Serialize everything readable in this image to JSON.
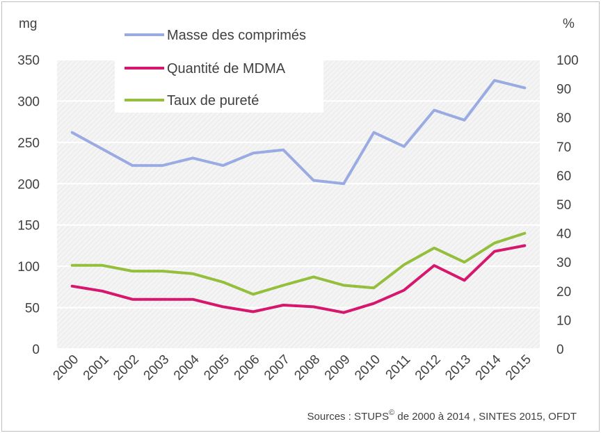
{
  "chart_data": {
    "type": "line",
    "x": [
      "2000",
      "2001",
      "2002",
      "2003",
      "2004",
      "2005",
      "2006",
      "2007",
      "2008",
      "2009",
      "2010",
      "2011",
      "2012",
      "2013",
      "2014",
      "2015"
    ],
    "y_left_label": "mg",
    "y_right_label": "%",
    "y_left_ticks": [
      "0",
      "50",
      "100",
      "150",
      "200",
      "250",
      "300",
      "350"
    ],
    "y_right_ticks": [
      "0",
      "10",
      "20",
      "30",
      "40",
      "50",
      "60",
      "70",
      "80",
      "90",
      "100"
    ],
    "ylim_left": [
      0,
      350
    ],
    "ylim_right": [
      0,
      100
    ],
    "series": [
      {
        "name": "Masse des comprimés",
        "axis": "left",
        "color": "#9aaae3",
        "values": [
          262,
          242,
          222,
          222,
          231,
          222,
          237,
          241,
          204,
          200,
          262,
          245,
          289,
          277,
          325,
          316
        ]
      },
      {
        "name": "Quantité de MDMA",
        "axis": "left",
        "color": "#d6176d",
        "values": [
          76,
          70,
          60,
          60,
          60,
          51,
          45,
          53,
          51,
          44,
          55,
          71,
          101,
          83,
          118,
          125
        ]
      },
      {
        "name": "Taux de pureté",
        "axis": "right",
        "color": "#94bf3c",
        "values": [
          28.9,
          28.9,
          26.9,
          26.9,
          26.0,
          23.1,
          18.9,
          22.0,
          24.9,
          22.0,
          21.1,
          29.1,
          34.9,
          30.0,
          36.6,
          40.0
        ]
      }
    ],
    "legend": "top-left, inside plot",
    "grid": true,
    "source": {
      "prefix": "Sources : STUPS",
      "superscript": "©",
      "suffix": " de 2000 à 2014 , SINTES 2015, OFDT"
    }
  }
}
